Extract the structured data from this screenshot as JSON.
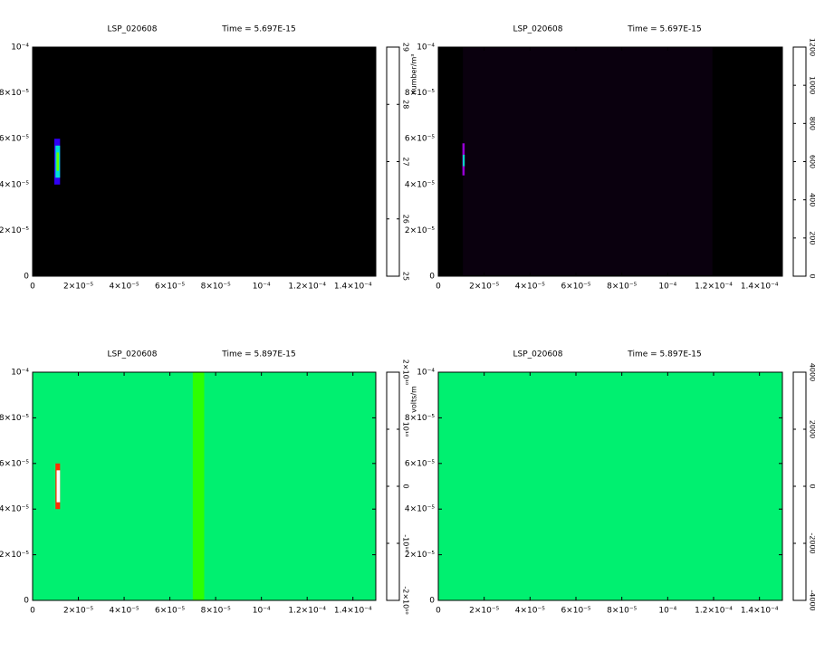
{
  "colormap": [
    "#000000",
    "#5a0080",
    "#a000e0",
    "#0000ff",
    "#00e0e0",
    "#00ff00",
    "#ffff00",
    "#ff8000",
    "#ff0000",
    "#ffffff"
  ],
  "chart_data": [
    {
      "type": "heatmap",
      "title": "LSP_020608",
      "subtitle": "Time = 5.697E-15",
      "xlim": [
        0,
        0.00015
      ],
      "ylim": [
        0,
        0.0001
      ],
      "xticks": [
        0,
        {
          "value": 2e-05,
          "label": "2×10⁻⁵"
        },
        {
          "value": 4e-05,
          "label": "4×10⁻⁵"
        },
        {
          "value": 6e-05,
          "label": "6×10⁻⁵"
        },
        {
          "value": 8e-05,
          "label": "8×10⁻⁵"
        },
        {
          "value": 0.0001,
          "label": "10⁻⁴"
        },
        {
          "value": 0.00012,
          "label": "1.2×10⁻⁴"
        },
        {
          "value": 0.00014,
          "label": "1.4×10⁻⁴"
        }
      ],
      "yticks": [
        0,
        {
          "value": 2e-05,
          "label": "2×10⁻⁵"
        },
        {
          "value": 4e-05,
          "label": "4×10⁻⁵"
        },
        {
          "value": 6e-05,
          "label": "6×10⁻⁵"
        },
        {
          "value": 8e-05,
          "label": "8×10⁻⁵"
        },
        {
          "value": 0.0001,
          "label": "10⁻⁴"
        }
      ],
      "zlim": [
        25,
        29
      ],
      "zticks": [
        25,
        26,
        27,
        28,
        29
      ],
      "colorbar_label": "number/m³",
      "background": 25,
      "cells": [
        {
          "x": [
            9.5e-06,
            1.2e-05
          ],
          "y": [
            4e-05,
            6e-05
          ],
          "value": 26.2
        },
        {
          "x": [
            1e-05,
            1.2e-05
          ],
          "y": [
            4.3e-05,
            5.7e-05
          ],
          "value": 26.8
        },
        {
          "x": [
            1.05e-05,
            1.15e-05
          ],
          "y": [
            4.6e-05,
            5.4e-05
          ],
          "value": 27.4
        }
      ]
    },
    {
      "type": "heatmap",
      "title": "LSP_020608",
      "subtitle": "Time = 5.697E-15",
      "xlim": [
        0,
        0.00015
      ],
      "ylim": [
        0,
        0.0001
      ],
      "xticks": [
        0,
        {
          "value": 2e-05,
          "label": "2×10⁻⁵"
        },
        {
          "value": 4e-05,
          "label": "4×10⁻⁵"
        },
        {
          "value": 6e-05,
          "label": "6×10⁻⁵"
        },
        {
          "value": 8e-05,
          "label": "8×10⁻⁵"
        },
        {
          "value": 0.0001,
          "label": "10⁻⁴"
        },
        {
          "value": 0.00012,
          "label": "1.2×10⁻⁴"
        },
        {
          "value": 0.00014,
          "label": "1.4×10⁻⁴"
        }
      ],
      "yticks": [
        0,
        {
          "value": 2e-05,
          "label": "2×10⁻⁵"
        },
        {
          "value": 4e-05,
          "label": "4×10⁻⁵"
        },
        {
          "value": 6e-05,
          "label": "6×10⁻⁵"
        },
        {
          "value": 8e-05,
          "label": "8×10⁻⁵"
        },
        {
          "value": 0.0001,
          "label": "10⁻⁴"
        }
      ],
      "zlim": [
        0,
        1200
      ],
      "zticks": [
        0,
        200,
        400,
        600,
        800,
        1000,
        1200
      ],
      "background": 0,
      "cells": [
        {
          "x": [
            1.07e-05,
            0.0001195
          ],
          "y": [
            0,
            0.0001
          ],
          "value": 15
        },
        {
          "x": [
            1.05e-05,
            1.15e-05
          ],
          "y": [
            4.4e-05,
            5.8e-05
          ],
          "value": 250
        },
        {
          "x": [
            1.07e-05,
            1.15e-05
          ],
          "y": [
            4.8e-05,
            5.3e-05
          ],
          "value": 550
        }
      ]
    },
    {
      "type": "heatmap",
      "title": "LSP_020608",
      "subtitle": "Time = 5.897E-15",
      "xlim": [
        0,
        0.00015
      ],
      "ylim": [
        0,
        0.0001
      ],
      "xticks": [
        0,
        {
          "value": 2e-05,
          "label": "2×10⁻⁵"
        },
        {
          "value": 4e-05,
          "label": "4×10⁻⁵"
        },
        {
          "value": 6e-05,
          "label": "6×10⁻⁵"
        },
        {
          "value": 8e-05,
          "label": "8×10⁻⁵"
        },
        {
          "value": 0.0001,
          "label": "10⁻⁴"
        },
        {
          "value": 0.00012,
          "label": "1.2×10⁻⁴"
        },
        {
          "value": 0.00014,
          "label": "1.4×10⁻⁴"
        }
      ],
      "yticks": [
        0,
        {
          "value": 2e-05,
          "label": "2×10⁻⁵"
        },
        {
          "value": 4e-05,
          "label": "4×10⁻⁵"
        },
        {
          "value": 6e-05,
          "label": "6×10⁻⁵"
        },
        {
          "value": 8e-05,
          "label": "8×10⁻⁵"
        },
        {
          "value": 0.0001,
          "label": "10⁻⁴"
        }
      ],
      "zlim": [
        -20000000000,
        20000000000
      ],
      "zticks": [
        {
          "value": -20000000000,
          "label": "-2×10¹⁰"
        },
        {
          "value": -10000000000,
          "label": "-10¹⁰"
        },
        0,
        {
          "value": 10000000000,
          "label": "10¹⁰"
        },
        {
          "value": 20000000000,
          "label": "2×10¹⁰"
        }
      ],
      "colorbar_label": "volts/m",
      "background": 0,
      "cells": [
        {
          "x": [
            7e-05,
            7.5e-05
          ],
          "y": [
            0,
            0.0001
          ],
          "value": 3000000000
        },
        {
          "x": [
            1e-05,
            1.2e-05
          ],
          "y": [
            4e-05,
            6e-05
          ],
          "value": 14000000000
        },
        {
          "x": [
            1.05e-05,
            1.2e-05
          ],
          "y": [
            4.3e-05,
            5.7e-05
          ],
          "value": 20000000000
        }
      ]
    },
    {
      "type": "heatmap",
      "title": "LSP_020608",
      "subtitle": "Time = 5.897E-15",
      "xlim": [
        0,
        0.00015
      ],
      "ylim": [
        0,
        0.0001
      ],
      "xticks": [
        0,
        {
          "value": 2e-05,
          "label": "2×10⁻⁵"
        },
        {
          "value": 4e-05,
          "label": "4×10⁻⁵"
        },
        {
          "value": 6e-05,
          "label": "6×10⁻⁵"
        },
        {
          "value": 8e-05,
          "label": "8×10⁻⁵"
        },
        {
          "value": 0.0001,
          "label": "10⁻⁴"
        },
        {
          "value": 0.00012,
          "label": "1.2×10⁻⁴"
        },
        {
          "value": 0.00014,
          "label": "1.4×10⁻⁴"
        }
      ],
      "yticks": [
        0,
        {
          "value": 2e-05,
          "label": "2×10⁻⁵"
        },
        {
          "value": 4e-05,
          "label": "4×10⁻⁵"
        },
        {
          "value": 6e-05,
          "label": "6×10⁻⁵"
        },
        {
          "value": 8e-05,
          "label": "8×10⁻⁵"
        },
        {
          "value": 0.0001,
          "label": "10⁻⁴"
        }
      ],
      "zlim": [
        -4000,
        4000
      ],
      "zticks": [
        -4000,
        -2000,
        0,
        2000,
        4000
      ],
      "background": 0,
      "cells": []
    }
  ]
}
